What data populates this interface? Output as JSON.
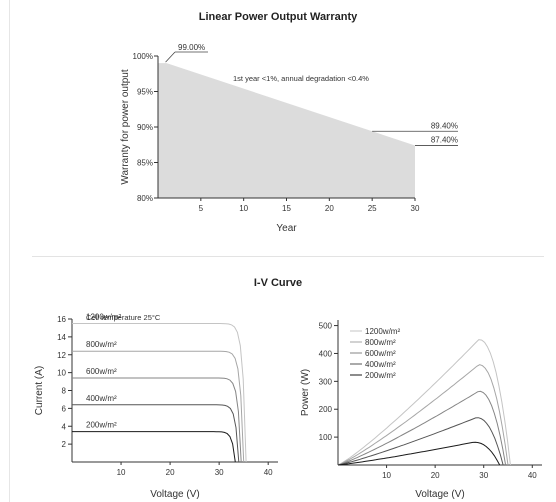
{
  "warranty": {
    "title": "Linear Power Output Warranty",
    "annotation": "1st year <1%, annual degradation <0.4%",
    "callouts": [
      "99.00%",
      "89.40%",
      "87.40%"
    ],
    "fill_color": "#dcdcdc"
  },
  "iv": {
    "title": "I-V Curve",
    "cell_temp_label": "Cell temperature 25°C",
    "irradiance_colors": [
      "#c4c4c4",
      "#a6a6a6",
      "#858585",
      "#555555",
      "#1a1a1a"
    ]
  },
  "chart_data": [
    {
      "type": "area",
      "title": "Linear Power Output Warranty",
      "xlabel": "Year",
      "ylabel": "Warranty for power output",
      "xlim": [
        0,
        30
      ],
      "ylim": [
        80,
        100
      ],
      "xticks": [
        5,
        10,
        15,
        20,
        25,
        30
      ],
      "yticks": [
        "80%",
        "85%",
        "90%",
        "95%",
        "100%"
      ],
      "series": [
        {
          "x": [
            1,
            30
          ],
          "y": [
            99.0,
            87.4
          ]
        }
      ],
      "marker_x": 25,
      "marker_y": 89.4,
      "grid": false
    },
    {
      "type": "line",
      "xlabel": "Voltage (V)",
      "ylabel": "Current (A)",
      "xlim": [
        0,
        42
      ],
      "ylim": [
        0,
        16
      ],
      "xticks": [
        10,
        20,
        30,
        40
      ],
      "yticks": [
        2,
        4,
        6,
        8,
        10,
        12,
        14,
        16
      ],
      "grid": false,
      "series": [
        {
          "name": "1200w/m²",
          "isc": 15.5,
          "voc": 35.5
        },
        {
          "name": "800w/m²",
          "isc": 12.4,
          "voc": 35.0
        },
        {
          "name": "600w/m²",
          "isc": 9.4,
          "voc": 34.5
        },
        {
          "name": "400w/m²",
          "isc": 6.4,
          "voc": 34.0
        },
        {
          "name": "200w/m²",
          "isc": 3.4,
          "voc": 33.3
        }
      ]
    },
    {
      "type": "line",
      "xlabel": "Voltage (V)",
      "ylabel": "Power (W)",
      "xlim": [
        0,
        42
      ],
      "ylim": [
        0,
        520
      ],
      "xticks": [
        10,
        20,
        30,
        40
      ],
      "yticks": [
        100,
        200,
        300,
        400,
        500
      ],
      "legend": "top-left",
      "grid": false,
      "series": [
        {
          "name": "1200w/m²",
          "pmax": 450,
          "vmp": 29.0,
          "voc": 35.5
        },
        {
          "name": "800w/m²",
          "pmax": 360,
          "vmp": 29.0,
          "voc": 35.0
        },
        {
          "name": "600w/m²",
          "pmax": 265,
          "vmp": 29.0,
          "voc": 34.5
        },
        {
          "name": "400w/m²",
          "pmax": 170,
          "vmp": 28.5,
          "voc": 34.0
        },
        {
          "name": "200w/m²",
          "pmax": 82,
          "vmp": 28.0,
          "voc": 33.3
        }
      ]
    }
  ]
}
